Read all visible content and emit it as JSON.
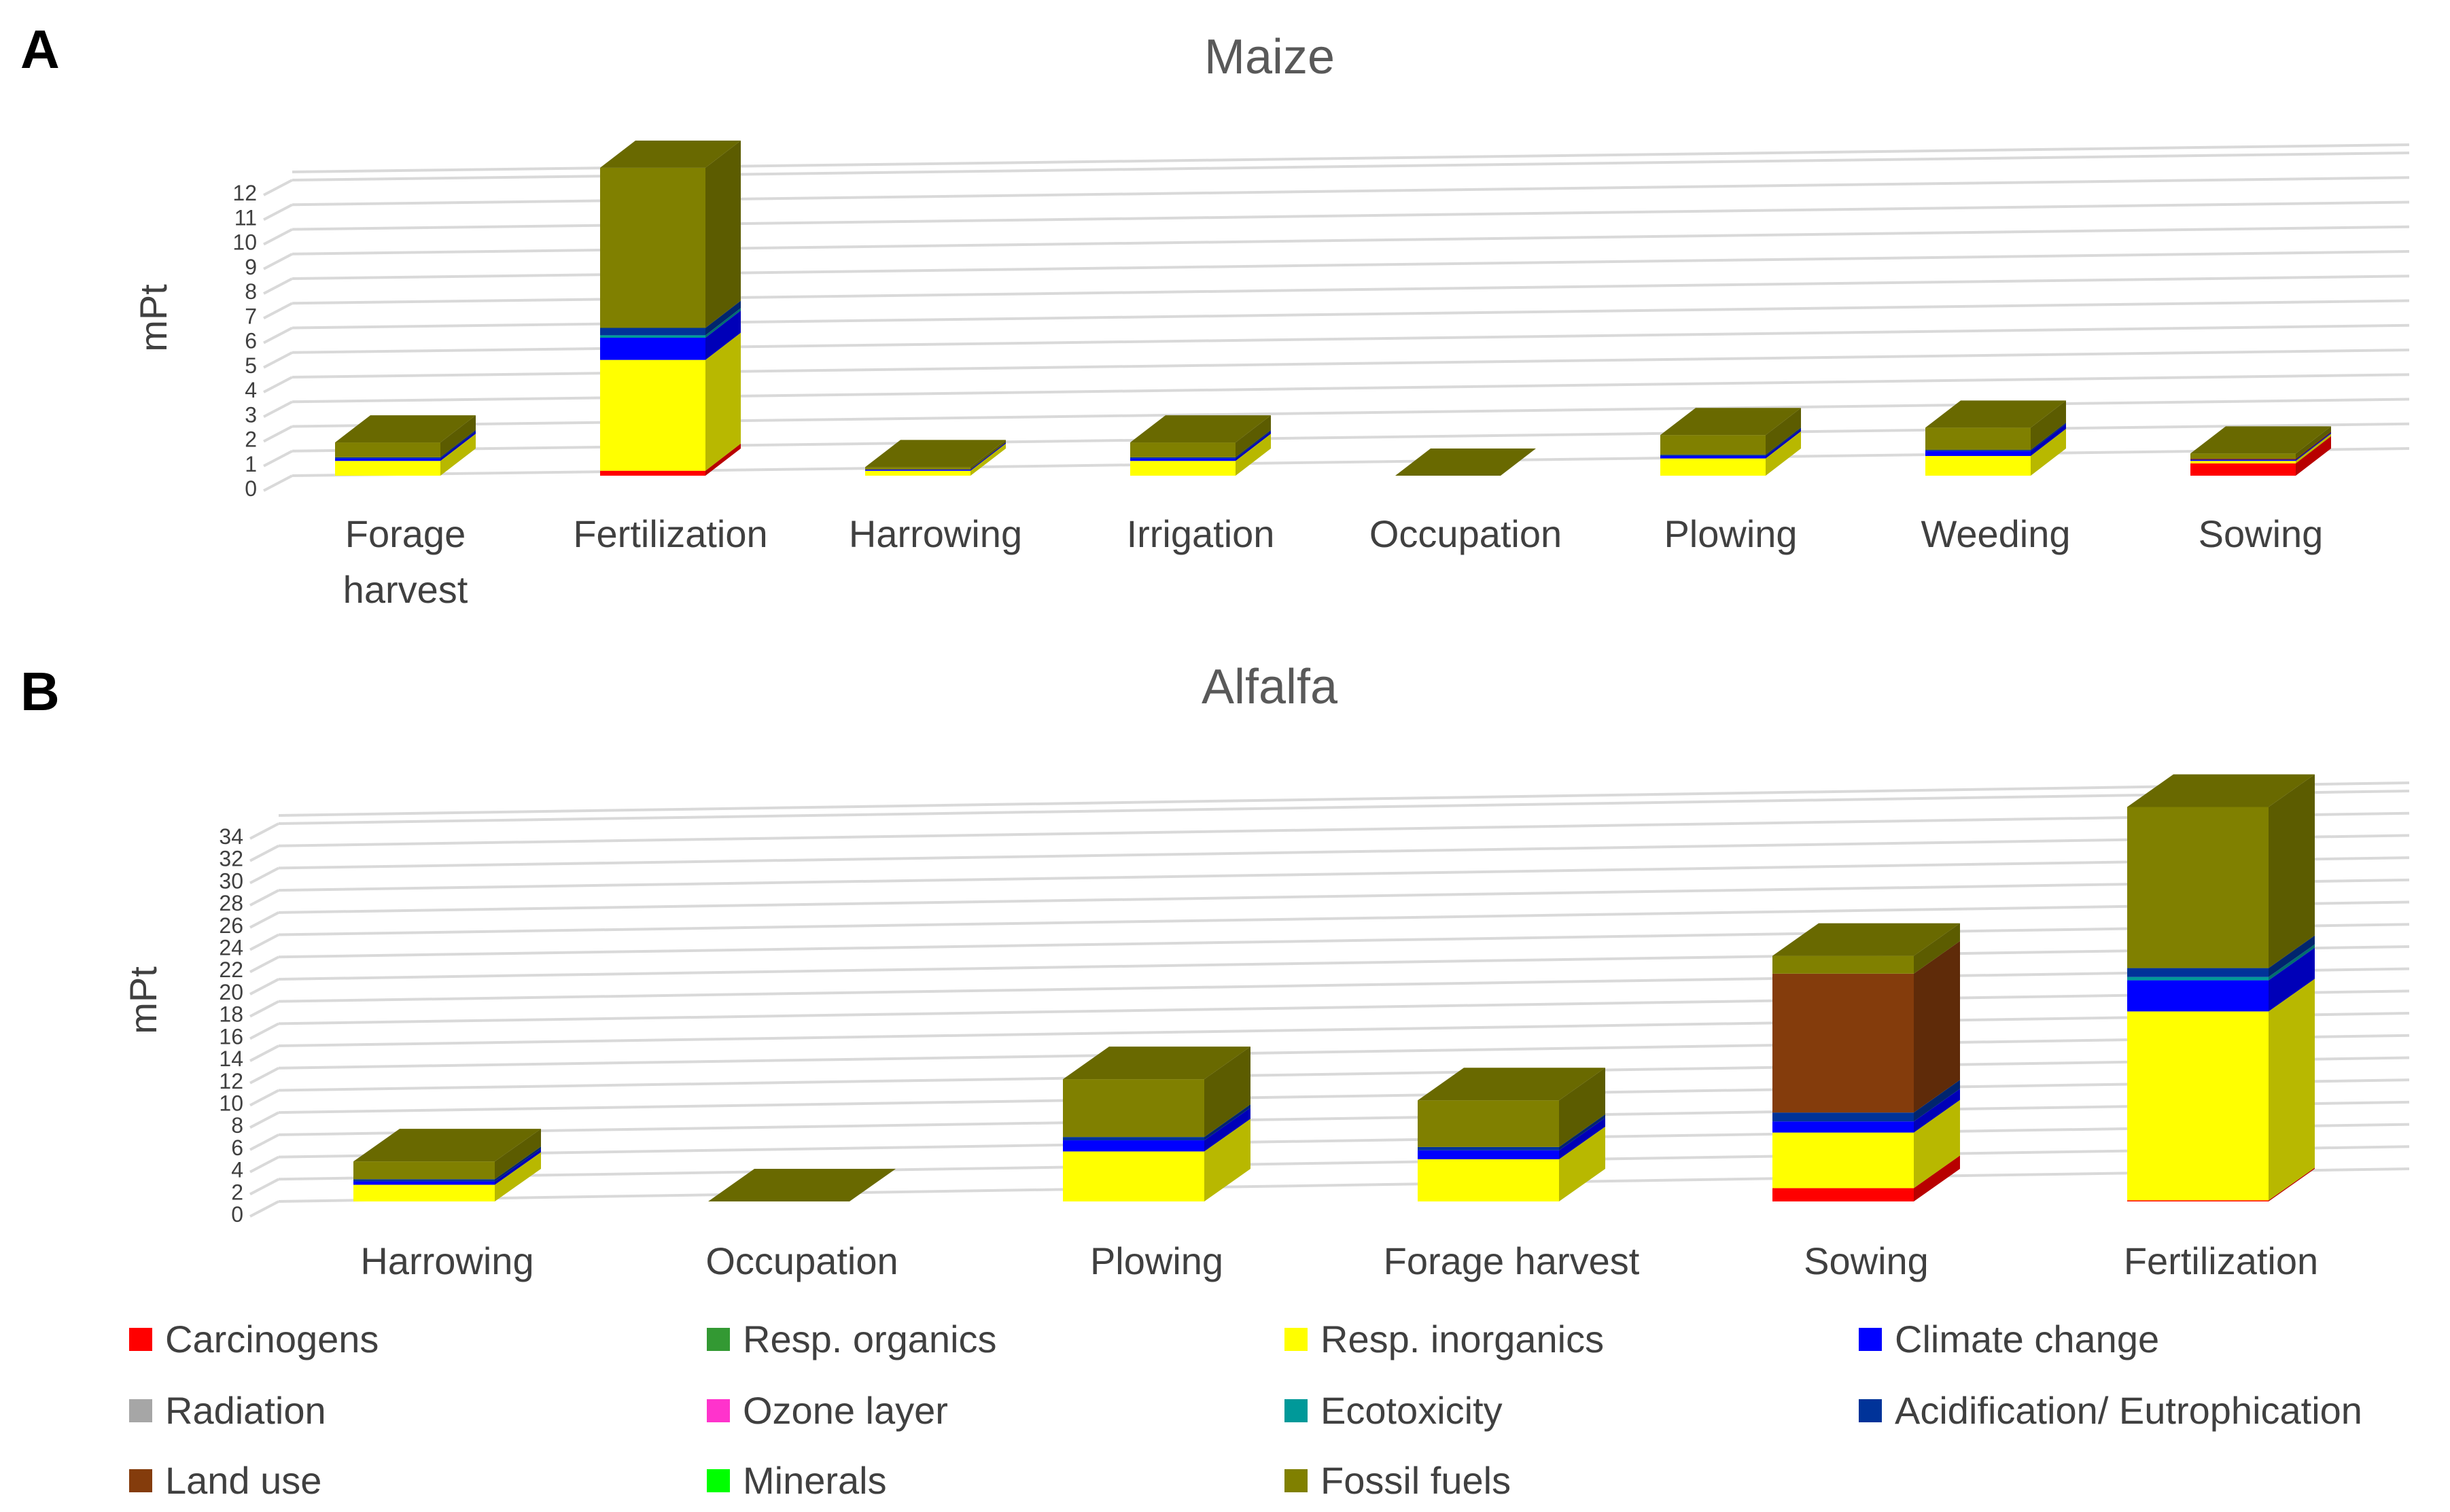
{
  "panel_letters": [
    "A",
    "B"
  ],
  "colors": {
    "Carcinogens": "#ff0000",
    "Resp. organics": "#339933",
    "Resp. inorganics": "#ffff00",
    "Climate change": "#0000ff",
    "Radiation": "#a6a6a6",
    "Ozone layer": "#ff33cc",
    "Ecotoxicity": "#009999",
    "Acidification/ Eutrophication": "#003399",
    "Land use": "#843c0c",
    "Minerals": "#00ff00",
    "Fossil fuels": "#808000"
  },
  "legend": [
    "Carcinogens",
    "Resp. organics",
    "Resp. inorganics",
    "Climate change",
    "Radiation",
    "Ozone layer",
    "Ecotoxicity",
    "Acidification/ Eutrophication",
    "Land use",
    "Minerals",
    "Fossil fuels"
  ],
  "chart_data": [
    {
      "type": "bar",
      "stacked": true,
      "projection": "3d",
      "title": "Maize",
      "ylabel": "mPt",
      "xlabel": "",
      "ylim": [
        0,
        12
      ],
      "yticks": [
        0,
        1,
        2,
        3,
        4,
        5,
        6,
        7,
        8,
        9,
        10,
        11,
        12
      ],
      "grid": true,
      "categories": [
        "Forage harvest",
        "Fertilization",
        "Harrowing",
        "Irrigation",
        "Occupation",
        "Plowing",
        "Weeding",
        "Sowing"
      ],
      "series": [
        {
          "name": "Carcinogens",
          "values": [
            0.0,
            0.2,
            0.0,
            0.0,
            0.0,
            0.0,
            0.0,
            0.5
          ]
        },
        {
          "name": "Resp. organics",
          "values": [
            0,
            0,
            0,
            0,
            0,
            0,
            0,
            0
          ]
        },
        {
          "name": "Resp. inorganics",
          "values": [
            0.6,
            4.5,
            0.2,
            0.6,
            0.0,
            0.7,
            0.8,
            0.1
          ]
        },
        {
          "name": "Climate change",
          "values": [
            0.1,
            0.9,
            0.05,
            0.1,
            0.0,
            0.1,
            0.2,
            0.05
          ]
        },
        {
          "name": "Radiation",
          "values": [
            0,
            0,
            0,
            0,
            0,
            0,
            0,
            0
          ]
        },
        {
          "name": "Ozone layer",
          "values": [
            0,
            0,
            0,
            0,
            0,
            0,
            0,
            0
          ]
        },
        {
          "name": "Ecotoxicity",
          "values": [
            0.0,
            0.1,
            0.0,
            0.0,
            0.0,
            0.0,
            0.0,
            0.0
          ]
        },
        {
          "name": "Acidification/ Eutrophication",
          "values": [
            0.05,
            0.3,
            0.0,
            0.05,
            0.0,
            0.05,
            0.05,
            0.0
          ]
        },
        {
          "name": "Land use",
          "values": [
            0,
            0,
            0,
            0,
            0,
            0,
            0,
            0.05
          ]
        },
        {
          "name": "Minerals",
          "values": [
            0,
            0,
            0,
            0,
            0,
            0,
            0,
            0
          ]
        },
        {
          "name": "Fossil fuels",
          "values": [
            0.6,
            6.5,
            0.1,
            0.6,
            0.0,
            0.8,
            0.9,
            0.2
          ]
        }
      ]
    },
    {
      "type": "bar",
      "stacked": true,
      "projection": "3d",
      "title": "Alfalfa",
      "ylabel": "mPt",
      "xlabel": "",
      "ylim": [
        0,
        34
      ],
      "yticks": [
        0,
        2,
        4,
        6,
        8,
        10,
        12,
        14,
        16,
        18,
        20,
        22,
        24,
        26,
        28,
        30,
        32,
        34
      ],
      "grid": true,
      "categories": [
        "Harrowing",
        "Occupation",
        "Plowing",
        "Forage harvest",
        "Sowing",
        "Fertilization"
      ],
      "series": [
        {
          "name": "Carcinogens",
          "values": [
            0.0,
            0.0,
            0.0,
            0.0,
            1.2,
            0.1
          ]
        },
        {
          "name": "Resp. organics",
          "values": [
            0,
            0,
            0,
            0,
            0,
            0
          ]
        },
        {
          "name": "Resp. inorganics",
          "values": [
            1.5,
            0.0,
            4.5,
            3.8,
            5.0,
            17.0
          ]
        },
        {
          "name": "Climate change",
          "values": [
            0.3,
            0.0,
            1.0,
            0.8,
            1.0,
            2.8
          ]
        },
        {
          "name": "Radiation",
          "values": [
            0,
            0,
            0,
            0,
            0,
            0
          ]
        },
        {
          "name": "Ozone layer",
          "values": [
            0,
            0,
            0,
            0,
            0,
            0
          ]
        },
        {
          "name": "Ecotoxicity",
          "values": [
            0.0,
            0.0,
            0.0,
            0.0,
            0.0,
            0.3
          ]
        },
        {
          "name": "Acidification/ Eutrophication",
          "values": [
            0.2,
            0.0,
            0.3,
            0.3,
            0.8,
            0.8
          ]
        },
        {
          "name": "Land use",
          "values": [
            0.0,
            0.0,
            0.0,
            0.0,
            12.5,
            0.0
          ]
        },
        {
          "name": "Minerals",
          "values": [
            0,
            0,
            0,
            0,
            0,
            0
          ]
        },
        {
          "name": "Fossil fuels",
          "values": [
            1.6,
            0.0,
            5.2,
            4.2,
            1.6,
            14.5
          ]
        }
      ]
    }
  ]
}
